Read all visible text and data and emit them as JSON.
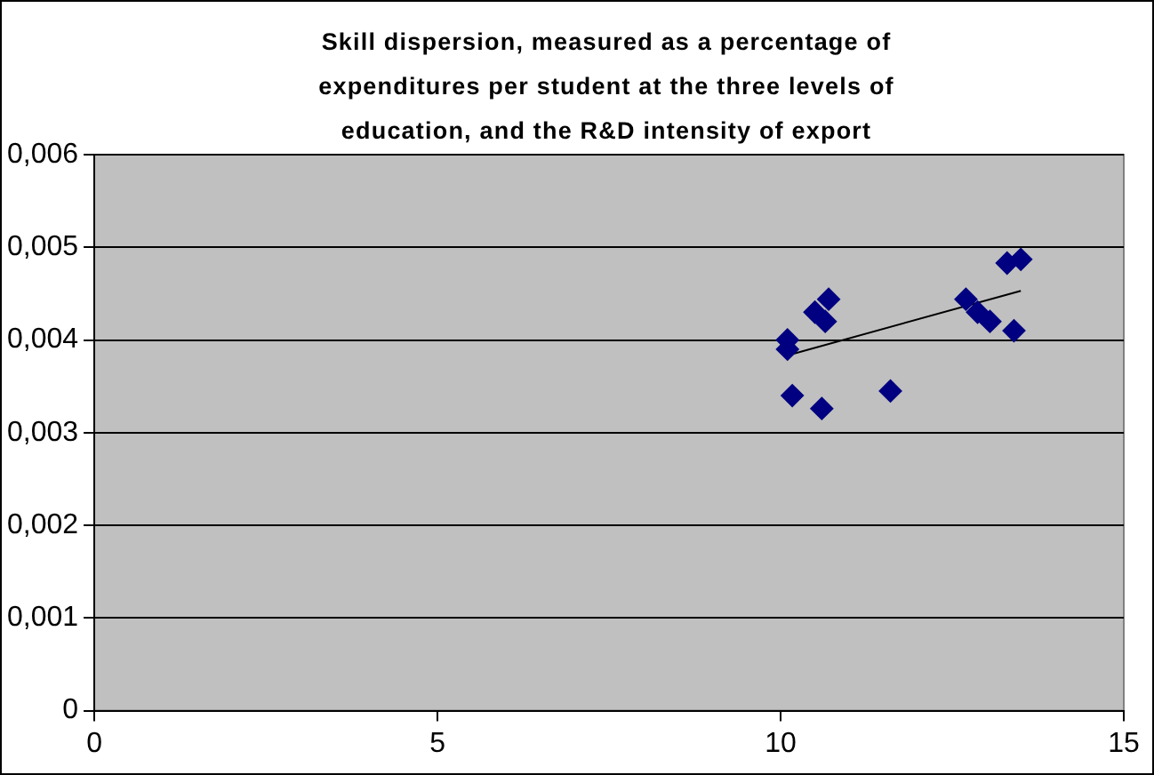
{
  "chart_data": {
    "type": "scatter",
    "title": "Skill dispersion, measured as a percentage of expenditures per student at the three levels of education, and the R&D intensity of export",
    "series": [
      {
        "color": "#000080",
        "marker": "diamond",
        "x": [
          10.1,
          10.1,
          10.17,
          10.6,
          10.5,
          10.65,
          10.7,
          11.6,
          12.7,
          12.87,
          13.05,
          13.4,
          13.3,
          13.5
        ],
        "values": [
          0.004,
          0.0039,
          0.0034,
          0.00326,
          0.0043,
          0.0042,
          0.00444,
          0.00345,
          0.00444,
          0.0043,
          0.0042,
          0.0041,
          0.00483,
          0.00487
        ]
      },
      {
        "type": "line",
        "color": "#000000",
        "marker": "none",
        "x": [
          10.13,
          13.5
        ],
        "values": [
          0.00384,
          0.00453
        ]
      }
    ],
    "xlim": [
      0,
      15
    ],
    "xticks": [
      0,
      5,
      10,
      15
    ],
    "ylim": [
      0,
      0.006
    ],
    "yticks": [
      {
        "value": 0,
        "label": "0"
      },
      {
        "value": 0.001,
        "label": "0,001"
      },
      {
        "value": 0.002,
        "label": "0,002"
      },
      {
        "value": 0.003,
        "label": "0,003"
      },
      {
        "value": 0.004,
        "label": "0,004"
      },
      {
        "value": 0.005,
        "label": "0,005"
      },
      {
        "value": 0.006,
        "label": "0,006"
      }
    ],
    "grid": "y",
    "legend": false
  }
}
